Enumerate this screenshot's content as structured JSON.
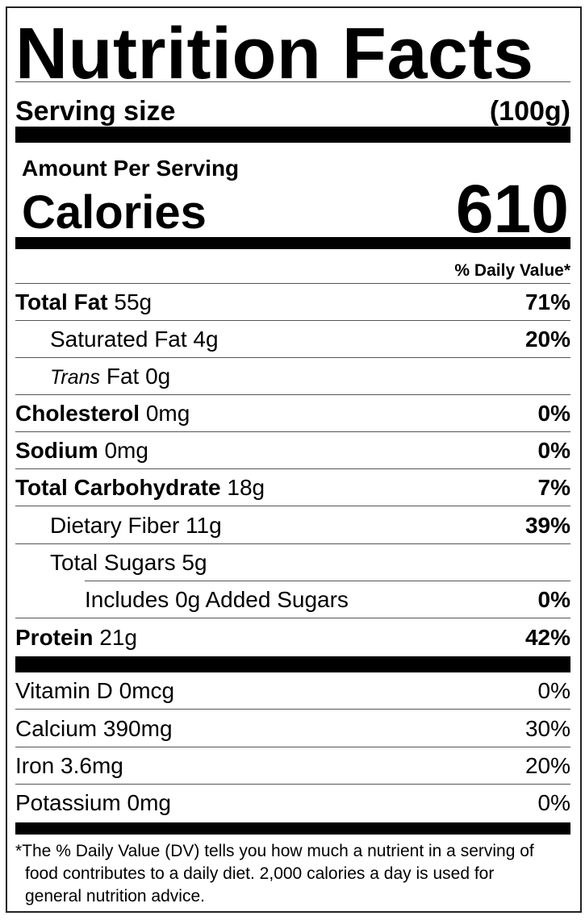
{
  "title": "Nutrition Facts",
  "serving": {
    "label": "Serving size",
    "value": "(100g)"
  },
  "amount_per_serving": "Amount Per Serving",
  "calories": {
    "label": "Calories",
    "value": "610"
  },
  "daily_value_header": "% Daily Value*",
  "nutrients": [
    {
      "name": "Total Fat",
      "amount": "55g",
      "dv": "71%"
    },
    {
      "name": "Saturated Fat 4g",
      "dv": "20%"
    },
    {
      "italic": "Trans",
      "name": " Fat 0g",
      "dv": ""
    },
    {
      "name": "Cholesterol",
      "amount": "0mg",
      "dv": "0%"
    },
    {
      "name": "Sodium",
      "amount": "0mg",
      "dv": "0%"
    },
    {
      "name": "Total Carbohydrate",
      "amount": "18g",
      "dv": "7%"
    },
    {
      "name": "Dietary Fiber 11g",
      "dv": "39%"
    },
    {
      "name": "Total Sugars 5g",
      "dv": ""
    },
    {
      "name": "Includes 0g Added Sugars",
      "dv": "0%"
    },
    {
      "name": "Protein",
      "amount": "21g",
      "dv": "42%"
    }
  ],
  "vitamins": [
    {
      "name": "Vitamin D 0mcg",
      "dv": "0%"
    },
    {
      "name": "Calcium 390mg",
      "dv": "30%"
    },
    {
      "name": "Iron 3.6mg",
      "dv": "20%"
    },
    {
      "name": "Potassium 0mg",
      "dv": "0%"
    }
  ],
  "footnote": "*The % Daily Value (DV) tells you how much a nutrient in a serving of food contributes to a daily diet. 2,000 calories a day is used for general nutrition advice."
}
